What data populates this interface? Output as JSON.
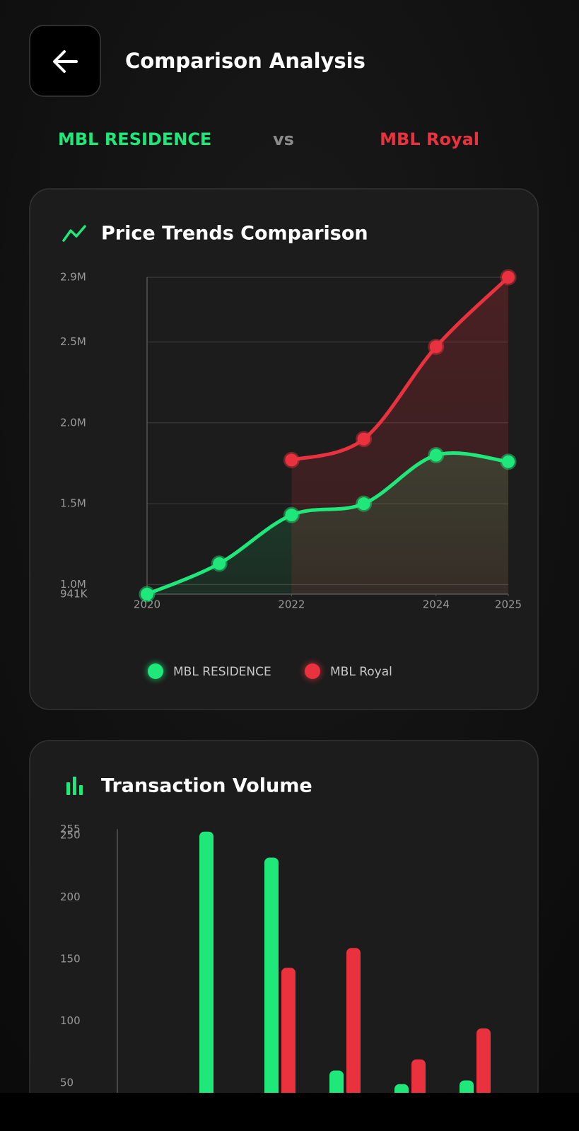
{
  "header": {
    "title": "Comparison Analysis"
  },
  "comparison": {
    "left": "MBL RESIDENCE",
    "separator": "vs",
    "right": "MBL Royal"
  },
  "chart_data": [
    {
      "type": "line",
      "title": "Price Trends Comparison",
      "x": [
        2020,
        2021,
        2022,
        2023,
        2024,
        2025
      ],
      "series": [
        {
          "name": "MBL RESIDENCE",
          "color": "#1fe87a",
          "values": [
            941000,
            1130000,
            1430000,
            1500000,
            1800000,
            1760000
          ]
        },
        {
          "name": "MBL Royal",
          "color": "#ea323e",
          "values": [
            null,
            null,
            1770000,
            1900000,
            2470000,
            2900000
          ]
        }
      ],
      "xlim": [
        2020,
        2025
      ],
      "xticks": [
        2020,
        2022,
        2024,
        2025
      ],
      "ylim": [
        941000,
        2900000
      ],
      "yticks": [
        {
          "value": 941000,
          "label": "941K"
        },
        {
          "value": 1000000,
          "label": "1.0M"
        },
        {
          "value": 1500000,
          "label": "1.5M"
        },
        {
          "value": 2000000,
          "label": "2.0M"
        },
        {
          "value": 2500000,
          "label": "2.5M"
        },
        {
          "value": 2900000,
          "label": "2.9M"
        }
      ],
      "grid": true
    },
    {
      "type": "bar",
      "title": "Transaction Volume",
      "categories": [
        null,
        null,
        null,
        null,
        null,
        null
      ],
      "series": [
        {
          "color": "#1fe87a",
          "values": [
            null,
            253,
            232,
            60,
            49,
            52
          ]
        },
        {
          "color": "#ea323e",
          "values": [
            null,
            null,
            143,
            159,
            69,
            94
          ]
        }
      ],
      "ylim": [
        0,
        255
      ],
      "yticks": [
        50,
        100,
        150,
        200,
        250,
        255
      ],
      "grid": false
    }
  ]
}
